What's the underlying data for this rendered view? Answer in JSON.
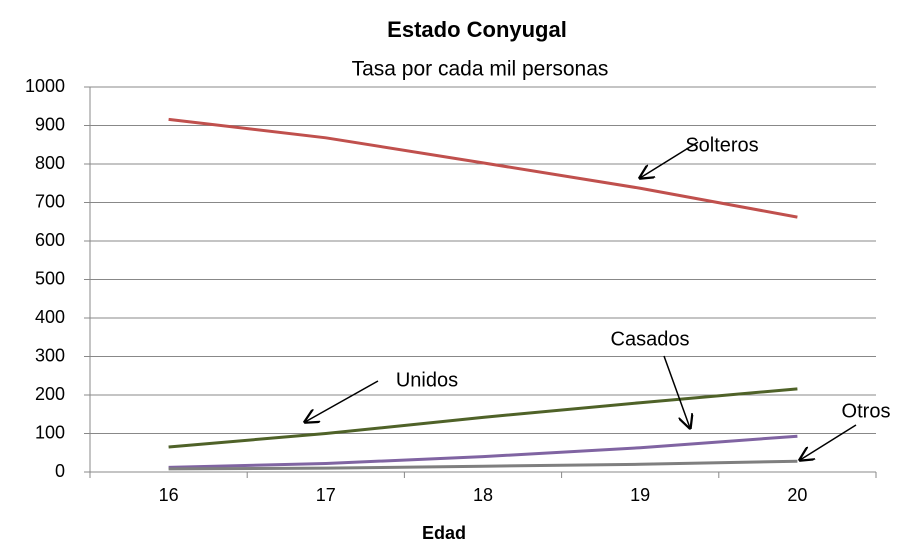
{
  "chart_data": {
    "type": "line",
    "title": "Estado Conyugal",
    "subtitle": "Tasa por cada mil personas",
    "x_label": "Edad",
    "categories": [
      "16",
      "17",
      "18",
      "19",
      "20"
    ],
    "series": [
      {
        "name": "Solteros",
        "color": "#c0504d",
        "values": [
          916,
          868,
          803,
          737,
          662
        ]
      },
      {
        "name": "Unidos",
        "color": "#4f6228",
        "values": [
          65,
          100,
          142,
          180,
          216
        ]
      },
      {
        "name": "Casados",
        "color": "#8064a2",
        "values": [
          12,
          22,
          40,
          63,
          93
        ]
      },
      {
        "name": "Otros",
        "color": "#7f7f7f",
        "values": [
          8,
          10,
          15,
          20,
          28
        ]
      }
    ],
    "ylim": [
      0,
      1000
    ],
    "yticks": [
      0,
      100,
      200,
      300,
      400,
      500,
      600,
      700,
      800,
      900,
      1000
    ],
    "grid": true
  }
}
